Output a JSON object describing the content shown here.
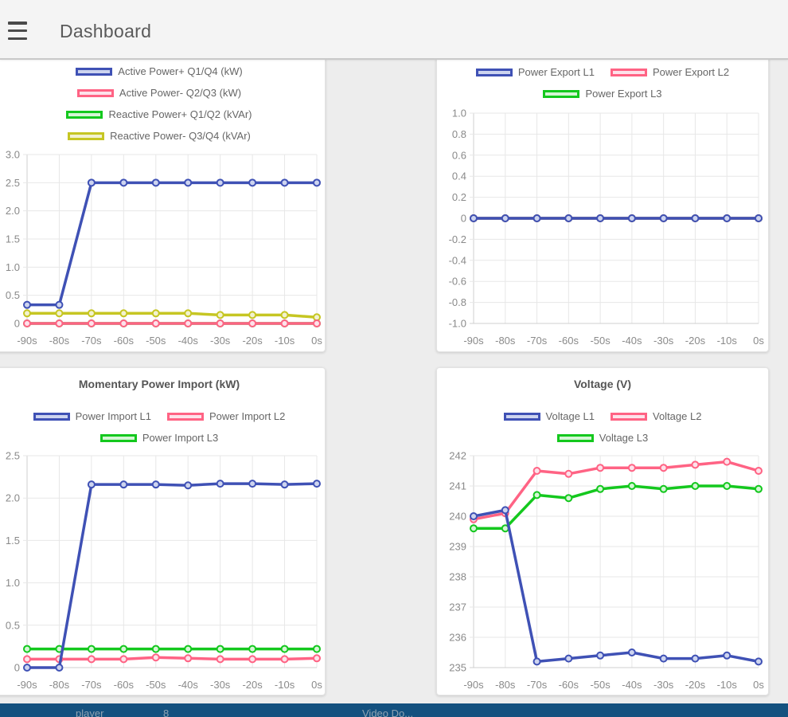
{
  "header": {
    "title": "Dashboard"
  },
  "theme": {
    "page_bg": "#EDEDED",
    "header_bg": "#F4F4F4",
    "card_bg": "#FFFFFF",
    "taskbar_bg": "#14517F",
    "grid": "#E7E7E7",
    "axis": "#CFCFCF",
    "tick_text": "#8A8A8A",
    "legend_text": "#666666",
    "title_text": "#555555"
  },
  "chart_data": [
    {
      "type": "line",
      "title": "",
      "categories": [
        "-90s",
        "-80s",
        "-70s",
        "-60s",
        "-50s",
        "-40s",
        "-30s",
        "-20s",
        "-10s",
        "0s"
      ],
      "series": [
        {
          "name": "Active Power+ Q1/Q4 (kW)",
          "color": "#3F51B5",
          "fill": "#CDD4EF",
          "values": [
            0.33,
            0.33,
            2.5,
            2.5,
            2.5,
            2.5,
            2.5,
            2.5,
            2.5,
            2.5
          ]
        },
        {
          "name": "Active Power- Q2/Q3 (kW)",
          "color": "#FF6384",
          "fill": "#FDE2EA",
          "values": [
            0,
            0,
            0,
            0,
            0,
            0,
            0,
            0,
            0,
            0
          ]
        },
        {
          "name": "Reactive Power+ Q1/Q2 (kVAr)",
          "color": "#14C81E",
          "fill": "#D5F6D5",
          "values": [
            0,
            0,
            0,
            0,
            0,
            0,
            0,
            0,
            0,
            0
          ]
        },
        {
          "name": "Reactive Power- Q3/Q4 (kVAr)",
          "color": "#C6C623",
          "fill": "#F2F2CF",
          "values": [
            0.18,
            0.18,
            0.18,
            0.18,
            0.18,
            0.18,
            0.15,
            0.15,
            0.15,
            0.11
          ]
        }
      ],
      "ylim": [
        0,
        3
      ],
      "yticks": [
        3.0,
        2.5,
        2.0,
        1.5,
        1.0,
        0.5,
        0
      ],
      "ytick_labels": [
        "3.0",
        "2.5",
        "2.0",
        "1.5",
        "1.0",
        "0.5",
        "0"
      ],
      "legend_position": "top",
      "grid": true
    },
    {
      "type": "line",
      "title": "",
      "categories": [
        "-90s",
        "-80s",
        "-70s",
        "-60s",
        "-50s",
        "-40s",
        "-30s",
        "-20s",
        "-10s",
        "0s"
      ],
      "series": [
        {
          "name": "Power Export L1",
          "color": "#3F51B5",
          "fill": "#CDD4EF",
          "values": [
            0,
            0,
            0,
            0,
            0,
            0,
            0,
            0,
            0,
            0
          ]
        },
        {
          "name": "Power Export L2",
          "color": "#FF6384",
          "fill": "#FDE2EA",
          "values": [
            0,
            0,
            0,
            0,
            0,
            0,
            0,
            0,
            0,
            0
          ]
        },
        {
          "name": "Power Export L3",
          "color": "#14C81E",
          "fill": "#D5F6D5",
          "values": [
            0,
            0,
            0,
            0,
            0,
            0,
            0,
            0,
            0,
            0
          ]
        }
      ],
      "ylim": [
        -1,
        1
      ],
      "yticks": [
        1.0,
        0.8,
        0.6,
        0.4,
        0.2,
        0,
        -0.2,
        -0.4,
        -0.6,
        -0.8,
        -1.0
      ],
      "ytick_labels": [
        "1.0",
        "0.8",
        "0.6",
        "0.4",
        "0.2",
        "0",
        "-0.2",
        "-0.4",
        "-0.6",
        "-0.8",
        "-1.0"
      ],
      "legend_position": "top",
      "grid": true
    },
    {
      "type": "line",
      "title": "Momentary Power Import (kW)",
      "categories": [
        "-90s",
        "-80s",
        "-70s",
        "-60s",
        "-50s",
        "-40s",
        "-30s",
        "-20s",
        "-10s",
        "0s"
      ],
      "series": [
        {
          "name": "Power Import L1",
          "color": "#3F51B5",
          "fill": "#CDD4EF",
          "values": [
            0,
            0,
            2.16,
            2.16,
            2.16,
            2.15,
            2.17,
            2.17,
            2.16,
            2.17
          ]
        },
        {
          "name": "Power Import L2",
          "color": "#FF6384",
          "fill": "#FDE2EA",
          "values": [
            0.1,
            0.1,
            0.1,
            0.1,
            0.12,
            0.11,
            0.1,
            0.1,
            0.1,
            0.11
          ]
        },
        {
          "name": "Power Import L3",
          "color": "#14C81E",
          "fill": "#D5F6D5",
          "values": [
            0.22,
            0.22,
            0.22,
            0.22,
            0.22,
            0.22,
            0.22,
            0.22,
            0.22,
            0.22
          ]
        }
      ],
      "ylim": [
        0,
        2.5
      ],
      "yticks": [
        2.5,
        2.0,
        1.5,
        1.0,
        0.5,
        0
      ],
      "ytick_labels": [
        "2.5",
        "2.0",
        "1.5",
        "1.0",
        "0.5",
        "0"
      ],
      "legend_position": "top",
      "grid": true
    },
    {
      "type": "line",
      "title": "Voltage (V)",
      "categories": [
        "-90s",
        "-80s",
        "-70s",
        "-60s",
        "-50s",
        "-40s",
        "-30s",
        "-20s",
        "-10s",
        "0s"
      ],
      "series": [
        {
          "name": "Voltage L1",
          "color": "#3F51B5",
          "fill": "#CDD4EF",
          "values": [
            240.0,
            240.2,
            235.2,
            235.3,
            235.4,
            235.5,
            235.3,
            235.3,
            235.4,
            235.2
          ]
        },
        {
          "name": "Voltage L2",
          "color": "#FF6384",
          "fill": "#FDE2EA",
          "values": [
            239.9,
            240.1,
            241.5,
            241.4,
            241.6,
            241.6,
            241.6,
            241.7,
            241.8,
            241.5
          ]
        },
        {
          "name": "Voltage L3",
          "color": "#14C81E",
          "fill": "#D5F6D5",
          "values": [
            239.6,
            239.6,
            240.7,
            240.6,
            240.9,
            241.0,
            240.9,
            241.0,
            241.0,
            240.9
          ]
        }
      ],
      "ylim": [
        235,
        242
      ],
      "yticks": [
        242,
        241,
        240,
        239,
        238,
        237,
        236,
        235
      ],
      "ytick_labels": [
        "242",
        "241",
        "240",
        "239",
        "238",
        "237",
        "236",
        "235"
      ],
      "legend_position": "top",
      "grid": true
    }
  ],
  "taskbar": {
    "items": [
      "player",
      "8",
      "Video Do..."
    ]
  }
}
